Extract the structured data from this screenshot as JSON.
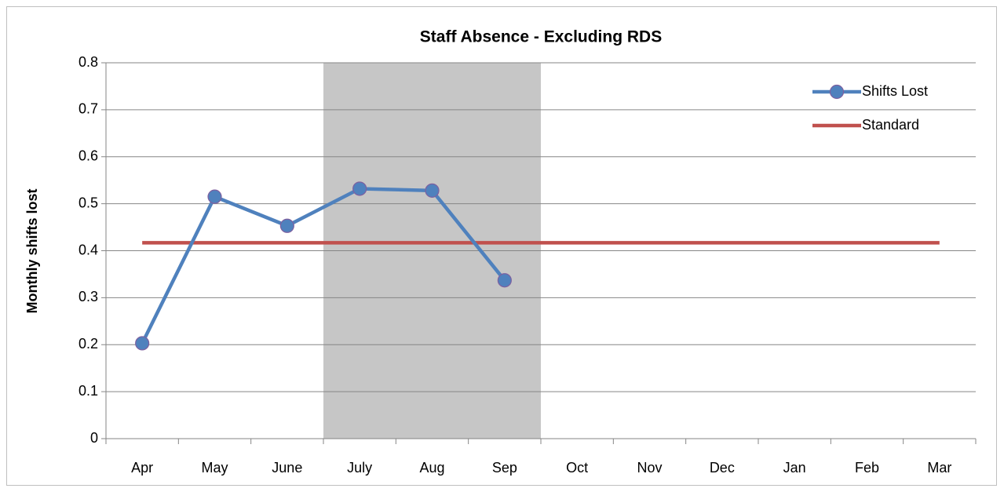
{
  "chart_data": {
    "type": "line",
    "title": "Staff Absence - Excluding RDS",
    "y_label": "Monthly shifts lost",
    "categories": [
      "Apr",
      "May",
      "June",
      "July",
      "Aug",
      "Sep",
      "Oct",
      "Nov",
      "Dec",
      "Jan",
      "Feb",
      "Mar"
    ],
    "series": [
      {
        "name": "Shifts Lost",
        "color": "#4f81bd",
        "marker": true,
        "values": [
          0.203,
          0.515,
          0.453,
          0.532,
          0.528,
          0.337,
          null,
          null,
          null,
          null,
          null,
          null
        ]
      },
      {
        "name": "Standard",
        "color": "#c0504d",
        "marker": false,
        "values": [
          0.417,
          0.417,
          0.417,
          0.417,
          0.417,
          0.417,
          0.417,
          0.417,
          0.417,
          0.417,
          0.417,
          0.417
        ]
      }
    ],
    "shaded_range": [
      "July",
      "Sep"
    ],
    "shade_color": "#c6c6c6",
    "ylim": [
      0,
      0.8
    ],
    "yticks": [
      0,
      0.1,
      0.2,
      0.3,
      0.4,
      0.5,
      0.6,
      0.7,
      0.8
    ],
    "grid": true,
    "legend": "top-right"
  }
}
